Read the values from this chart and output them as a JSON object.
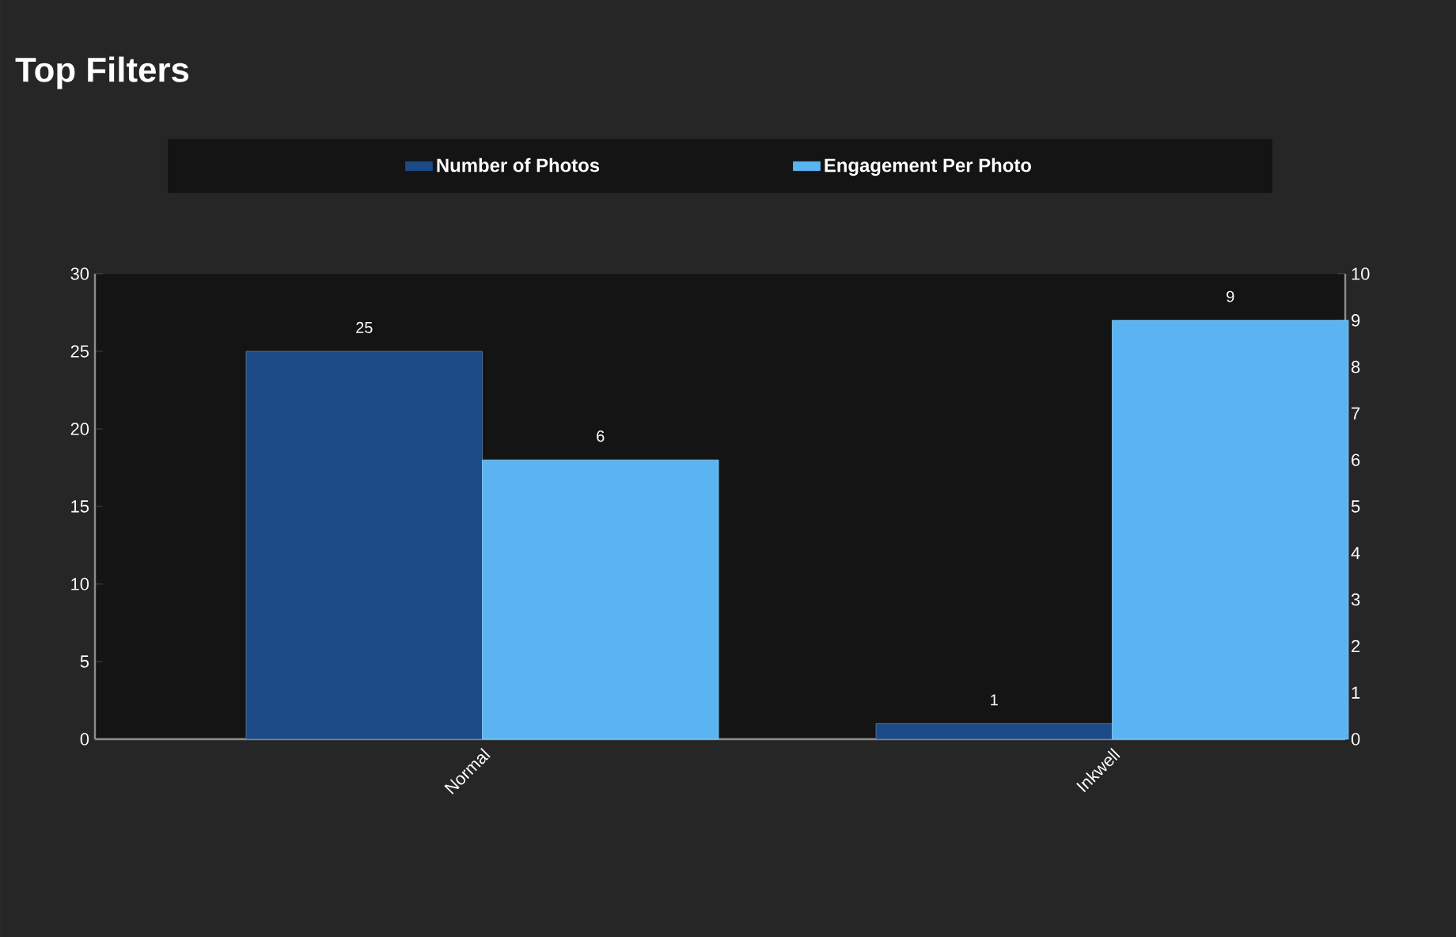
{
  "chart_data": {
    "type": "bar",
    "title": "Top Filters",
    "categories": [
      "Normal",
      "Inkwell"
    ],
    "series": [
      {
        "name": "Number of Photos",
        "color": "#1b4a86",
        "values": [
          25,
          1
        ]
      },
      {
        "name": "Engagement Per Photo",
        "color": "#5ab4f2",
        "values": [
          6,
          9
        ],
        "axis": "y2"
      }
    ],
    "ylim": [
      0,
      30
    ],
    "yticks": [
      0,
      5,
      10,
      15,
      20,
      25,
      30
    ],
    "y2lim": [
      0,
      10
    ],
    "y2ticks": [
      0,
      1,
      2,
      3,
      4,
      5,
      6,
      7,
      8,
      9,
      10
    ],
    "data_labels": true,
    "legend": "top",
    "grid": false
  }
}
